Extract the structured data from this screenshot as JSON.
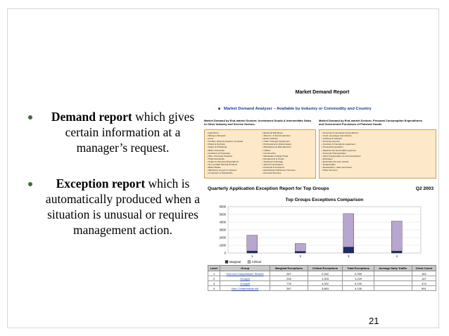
{
  "bullets": [
    {
      "term": "Demand report",
      "rest_line1": " which",
      "rest": "gives certain information at a manager’s request."
    },
    {
      "term": "Exception report",
      "rest_line1": " which",
      "rest": "is automatically produced when a situation is unusual or requires management action."
    }
  ],
  "figure": {
    "title": "Market Demand Report",
    "subtitle": "Market Demand Analyzer – Available by Industry or Commodity and Country",
    "col1_heading": "Market Demand by End-market Sectors: Investment Goods & Intermediate Sales to Other Industry and Service Sectors",
    "col2_heading": "Market Demand by End-market Sectors: Personal Consumption Expenditures and Government Purchases of Finished Goods",
    "panel1_col_a": [
      "Agriculture",
      "Mining & Minerals",
      "Food",
      "Textiles, Wearing Apparel, Footwear",
      "Wood & Furniture",
      "Paper & Publishing",
      "Basic Chemicals",
      "Fertilizers & Pesticides",
      "Misc. Chemical Products",
      "Pharmaceuticals",
      "Soaps & Cleaning Preparations",
      "Non-metallic Mineral Products",
      "Basic Metals",
      "Machinery except Computers",
      "Computers & Peripherals"
    ],
    "panel1_col_b": [
      "Electrical Machinery",
      "Telecom. & Semiconductors",
      "Motor Vehicles",
      "Other Transport Equipment",
      "Professional & Optical Equip.",
      "Miscellaneous Manufactures",
      "Utilities",
      "Construction",
      "Wholesale & Retail Trade",
      "Restaurants & Hotels",
      "Transport & Storage",
      "Telecommunications",
      "Financial & Insurance",
      "Real Estate & Business Services",
      "Personal Services"
    ],
    "panel2": [
      "Personal Consumption Expenditures",
      "Food, beverages and tobacco",
      "Clothing & footwear",
      "Housing expense",
      "Furniture & household equipment",
      "Household operation",
      "Medical care and health expenses",
      "Personal Transportation",
      "Other transportation & communications",
      "Education",
      "Entertainment and cultural",
      "Hotels/Cafés",
      "Restaurants, cafés and hotels",
      "Other Services"
    ],
    "exception_title": "Quarterly Application Exception Report for Top Groups",
    "exception_period": "Q2 2003"
  },
  "chart_data": {
    "type": "bar",
    "title": "Top Groups Exceptions Comparison",
    "categories": [
      "1",
      "2",
      "3",
      "4"
    ],
    "ylim": [
      0,
      6000
    ],
    "yticks": [
      0,
      1000,
      2000,
      3000,
      4000,
      5000,
      6000
    ],
    "series": [
      {
        "name": "Marginal",
        "values": [
          267,
          226,
          778,
          267
        ]
      },
      {
        "name": "Critical",
        "values": [
          2042,
          1003,
          4322,
          3863
        ]
      }
    ],
    "stacked": true,
    "legend": "bottom-left",
    "colors": {
      "Marginal": "#1f2a66",
      "Critical": "#b9a6cf"
    }
  },
  "table": {
    "headers": [
      "Label",
      "Group",
      "Marginal Exceptions",
      "Critical Exceptions",
      "Total Exceptions",
      "Average Daily Traffic",
      "Client Count"
    ],
    "rows": [
      [
        "1",
        "Dev-net Compression Shared",
        "267",
        "2,042",
        "2,309",
        "",
        "162"
      ],
      [
        "2",
        "GroupA",
        "226",
        "1,003",
        "1,229",
        "",
        "147"
      ],
      [
        "3",
        "GroupB",
        "778",
        "4,322",
        "5,100",
        "",
        "474"
      ],
      [
        "4",
        "Non-Compression.elk",
        "267",
        "3,863",
        "4,130",
        "",
        "591"
      ]
    ]
  },
  "page_number": "21"
}
